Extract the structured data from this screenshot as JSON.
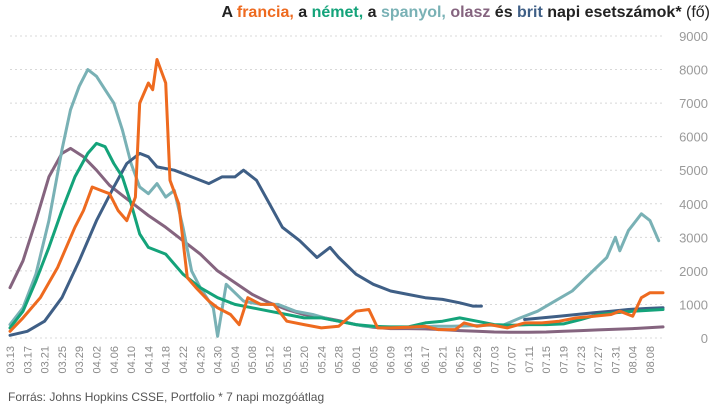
{
  "title": {
    "part1": "A ",
    "french": "francia,",
    "part2": " a ",
    "german": "német,",
    "part3": " a ",
    "spanish": "spanyol,",
    "part4": " ",
    "italian": "olasz",
    "part5": " és ",
    "british": "brit",
    "part6": " napi esetszámok*",
    "part7": " (fő)"
  },
  "source": "Forrás: Johns Hopkins CSSE, Portfolio  * 7 napi mozgóátlag",
  "colors": {
    "french": "#ee6a1f",
    "german": "#14a37a",
    "spanish": "#79b1b5",
    "italian": "#85647f",
    "british": "#3f5f86"
  },
  "chart_data": {
    "type": "line",
    "title": "A francia, a német, a spanyol, olasz és brit napi esetszámok* (fő)",
    "ylim": [
      0,
      9000
    ],
    "y_ticks": [
      0,
      1000,
      2000,
      3000,
      4000,
      5000,
      6000,
      7000,
      8000,
      9000
    ],
    "y_axis_side": "right",
    "grid": true,
    "x_start": "2020-03-13",
    "x_end": "2020-08-11",
    "x_tick_labels": [
      "03.13",
      "03.17",
      "03.21",
      "03.25",
      "03.29",
      "04.02",
      "04.06",
      "04.10",
      "04.14",
      "04.18",
      "04.22",
      "04.26",
      "04.30",
      "05.04",
      "05.08",
      "05.12",
      "05.16",
      "05.20",
      "05.24",
      "05.28",
      "06.01",
      "06.05",
      "06.09",
      "06.13",
      "06.17",
      "06.21",
      "06.25",
      "06.29",
      "07.03",
      "07.07",
      "07.11",
      "07.15",
      "07.19",
      "07.23",
      "07.27",
      "07.31",
      "08.04",
      "08.08"
    ],
    "series": [
      {
        "key": "italian",
        "points": [
          [
            "03.13",
            1500
          ],
          [
            "03.16",
            2300
          ],
          [
            "03.19",
            3500
          ],
          [
            "03.22",
            4800
          ],
          [
            "03.25",
            5500
          ],
          [
            "03.27",
            5650
          ],
          [
            "03.30",
            5400
          ],
          [
            "04.02",
            5000
          ],
          [
            "04.05",
            4550
          ],
          [
            "04.08",
            4250
          ],
          [
            "04.11",
            3950
          ],
          [
            "04.14",
            3650
          ],
          [
            "04.18",
            3300
          ],
          [
            "04.22",
            2900
          ],
          [
            "04.26",
            2500
          ],
          [
            "04.30",
            2000
          ],
          [
            "05.04",
            1650
          ],
          [
            "05.08",
            1300
          ],
          [
            "05.12",
            1050
          ],
          [
            "05.16",
            850
          ],
          [
            "05.20",
            700
          ],
          [
            "05.24",
            620
          ],
          [
            "05.28",
            520
          ],
          [
            "06.01",
            400
          ],
          [
            "06.05",
            320
          ],
          [
            "06.09",
            280
          ],
          [
            "06.13",
            280
          ],
          [
            "06.17",
            270
          ],
          [
            "06.21",
            250
          ],
          [
            "06.25",
            220
          ],
          [
            "06.29",
            200
          ],
          [
            "07.03",
            180
          ],
          [
            "07.07",
            170
          ],
          [
            "07.11",
            170
          ],
          [
            "07.15",
            180
          ],
          [
            "07.19",
            200
          ],
          [
            "07.23",
            220
          ],
          [
            "07.27",
            240
          ],
          [
            "07.31",
            260
          ],
          [
            "08.04",
            280
          ],
          [
            "08.11",
            330
          ]
        ]
      },
      {
        "key": "spanish",
        "points": [
          [
            "03.13",
            400
          ],
          [
            "03.16",
            900
          ],
          [
            "03.19",
            1900
          ],
          [
            "03.22",
            3500
          ],
          [
            "03.25",
            5600
          ],
          [
            "03.27",
            6800
          ],
          [
            "03.29",
            7500
          ],
          [
            "03.31",
            8000
          ],
          [
            "04.02",
            7800
          ],
          [
            "04.04",
            7400
          ],
          [
            "04.06",
            7000
          ],
          [
            "04.08",
            6200
          ],
          [
            "04.10",
            5200
          ],
          [
            "04.12",
            4500
          ],
          [
            "04.14",
            4300
          ],
          [
            "04.16",
            4600
          ],
          [
            "04.18",
            4200
          ],
          [
            "04.20",
            4400
          ],
          [
            "04.22",
            3300
          ],
          [
            "04.24",
            2000
          ],
          [
            "04.26",
            1500
          ],
          [
            "04.29",
            900
          ],
          [
            "04.30",
            50
          ],
          [
            "05.02",
            1600
          ],
          [
            "05.06",
            1100
          ],
          [
            "05.10",
            1000
          ],
          [
            "05.14",
            1000
          ],
          [
            "05.18",
            800
          ],
          [
            "05.22",
            700
          ],
          [
            "05.26",
            550
          ],
          [
            "05.30",
            450
          ],
          [
            "06.03",
            350
          ],
          [
            "06.07",
            330
          ],
          [
            "06.11",
            320
          ],
          [
            "06.15",
            320
          ],
          [
            "06.19",
            350
          ],
          [
            "06.23",
            350
          ],
          [
            "06.27",
            360
          ],
          [
            "07.01",
            380
          ],
          [
            "07.05",
            380
          ],
          [
            "07.09",
            600
          ],
          [
            "07.13",
            800
          ],
          [
            "07.17",
            1100
          ],
          [
            "07.21",
            1400
          ],
          [
            "07.25",
            1900
          ],
          [
            "07.29",
            2400
          ],
          [
            "07.31",
            3000
          ],
          [
            "08.01",
            2600
          ],
          [
            "08.03",
            3200
          ],
          [
            "08.06",
            3700
          ],
          [
            "08.08",
            3500
          ],
          [
            "08.10",
            2900
          ]
        ]
      },
      {
        "key": "british",
        "points": [
          [
            "03.13",
            80
          ],
          [
            "03.17",
            200
          ],
          [
            "03.21",
            500
          ],
          [
            "03.25",
            1200
          ],
          [
            "03.29",
            2300
          ],
          [
            "04.02",
            3500
          ],
          [
            "04.06",
            4500
          ],
          [
            "04.09",
            5200
          ],
          [
            "04.12",
            5500
          ],
          [
            "04.14",
            5400
          ],
          [
            "04.16",
            5100
          ],
          [
            "04.20",
            5000
          ],
          [
            "04.24",
            4800
          ],
          [
            "04.28",
            4600
          ],
          [
            "05.01",
            4800
          ],
          [
            "05.04",
            4800
          ],
          [
            "05.06",
            5000
          ],
          [
            "05.09",
            4700
          ],
          [
            "05.12",
            4000
          ],
          [
            "05.15",
            3300
          ],
          [
            "05.19",
            2900
          ],
          [
            "05.23",
            2400
          ],
          [
            "05.26",
            2700
          ],
          [
            "05.28",
            2400
          ],
          [
            "06.01",
            1900
          ],
          [
            "06.05",
            1600
          ],
          [
            "06.09",
            1400
          ],
          [
            "06.13",
            1300
          ],
          [
            "06.17",
            1200
          ],
          [
            "06.21",
            1150
          ],
          [
            "06.25",
            1050
          ],
          [
            "06.28",
            950
          ],
          [
            "06.30",
            950
          ],
          [
            "07.04",
            null
          ],
          [
            "07.09",
            null
          ],
          [
            "07.10",
            550
          ],
          [
            "07.14",
            600
          ],
          [
            "07.18",
            650
          ],
          [
            "07.22",
            700
          ],
          [
            "07.26",
            750
          ],
          [
            "07.30",
            800
          ],
          [
            "08.03",
            850
          ],
          [
            "08.07",
            880
          ],
          [
            "08.11",
            900
          ]
        ]
      },
      {
        "key": "german",
        "points": [
          [
            "03.13",
            300
          ],
          [
            "03.16",
            800
          ],
          [
            "03.19",
            1700
          ],
          [
            "03.22",
            2700
          ],
          [
            "03.25",
            3800
          ],
          [
            "03.28",
            4800
          ],
          [
            "03.31",
            5500
          ],
          [
            "04.02",
            5800
          ],
          [
            "04.04",
            5700
          ],
          [
            "04.06",
            5200
          ],
          [
            "04.08",
            4800
          ],
          [
            "04.10",
            4000
          ],
          [
            "04.12",
            3100
          ],
          [
            "04.14",
            2700
          ],
          [
            "04.18",
            2500
          ],
          [
            "04.22",
            1900
          ],
          [
            "04.26",
            1500
          ],
          [
            "04.30",
            1200
          ],
          [
            "05.04",
            1000
          ],
          [
            "05.08",
            900
          ],
          [
            "05.12",
            800
          ],
          [
            "05.16",
            700
          ],
          [
            "05.20",
            600
          ],
          [
            "05.24",
            600
          ],
          [
            "05.28",
            500
          ],
          [
            "06.01",
            400
          ],
          [
            "06.05",
            350
          ],
          [
            "06.09",
            330
          ],
          [
            "06.13",
            330
          ],
          [
            "06.17",
            450
          ],
          [
            "06.21",
            500
          ],
          [
            "06.25",
            600
          ],
          [
            "06.29",
            500
          ],
          [
            "07.03",
            400
          ],
          [
            "07.07",
            380
          ],
          [
            "07.11",
            400
          ],
          [
            "07.15",
            400
          ],
          [
            "07.19",
            420
          ],
          [
            "07.23",
            550
          ],
          [
            "07.27",
            700
          ],
          [
            "07.31",
            750
          ],
          [
            "08.04",
            800
          ],
          [
            "08.11",
            850
          ]
        ]
      },
      {
        "key": "french",
        "points": [
          [
            "03.13",
            200
          ],
          [
            "03.16",
            600
          ],
          [
            "03.20",
            1200
          ],
          [
            "03.24",
            2100
          ],
          [
            "03.28",
            3300
          ],
          [
            "03.30",
            3800
          ],
          [
            "04.01",
            4500
          ],
          [
            "04.03",
            4400
          ],
          [
            "04.05",
            4300
          ],
          [
            "04.07",
            3800
          ],
          [
            "04.09",
            3500
          ],
          [
            "04.11",
            4200
          ],
          [
            "04.12",
            7000
          ],
          [
            "04.14",
            7600
          ],
          [
            "04.15",
            7400
          ],
          [
            "04.16",
            8300
          ],
          [
            "04.18",
            7600
          ],
          [
            "04.19",
            4700
          ],
          [
            "04.21",
            4000
          ],
          [
            "04.23",
            1800
          ],
          [
            "04.25",
            1500
          ],
          [
            "04.28",
            1100
          ],
          [
            "04.30",
            900
          ],
          [
            "05.03",
            700
          ],
          [
            "05.05",
            400
          ],
          [
            "05.07",
            1200
          ],
          [
            "05.10",
            1000
          ],
          [
            "05.13",
            1000
          ],
          [
            "05.16",
            500
          ],
          [
            "05.20",
            400
          ],
          [
            "05.24",
            300
          ],
          [
            "05.28",
            350
          ],
          [
            "06.01",
            800
          ],
          [
            "06.04",
            850
          ],
          [
            "06.06",
            300
          ],
          [
            "06.09",
            300
          ],
          [
            "06.13",
            320
          ],
          [
            "06.17",
            350
          ],
          [
            "06.20",
            250
          ],
          [
            "06.24",
            250
          ],
          [
            "06.26",
            450
          ],
          [
            "06.29",
            350
          ],
          [
            "07.02",
            400
          ],
          [
            "07.06",
            300
          ],
          [
            "07.10",
            450
          ],
          [
            "07.14",
            450
          ],
          [
            "07.18",
            500
          ],
          [
            "07.22",
            600
          ],
          [
            "07.26",
            650
          ],
          [
            "07.30",
            700
          ],
          [
            "08.01",
            800
          ],
          [
            "08.04",
            650
          ],
          [
            "08.06",
            1200
          ],
          [
            "08.08",
            1350
          ],
          [
            "08.11",
            1350
          ]
        ]
      }
    ]
  }
}
